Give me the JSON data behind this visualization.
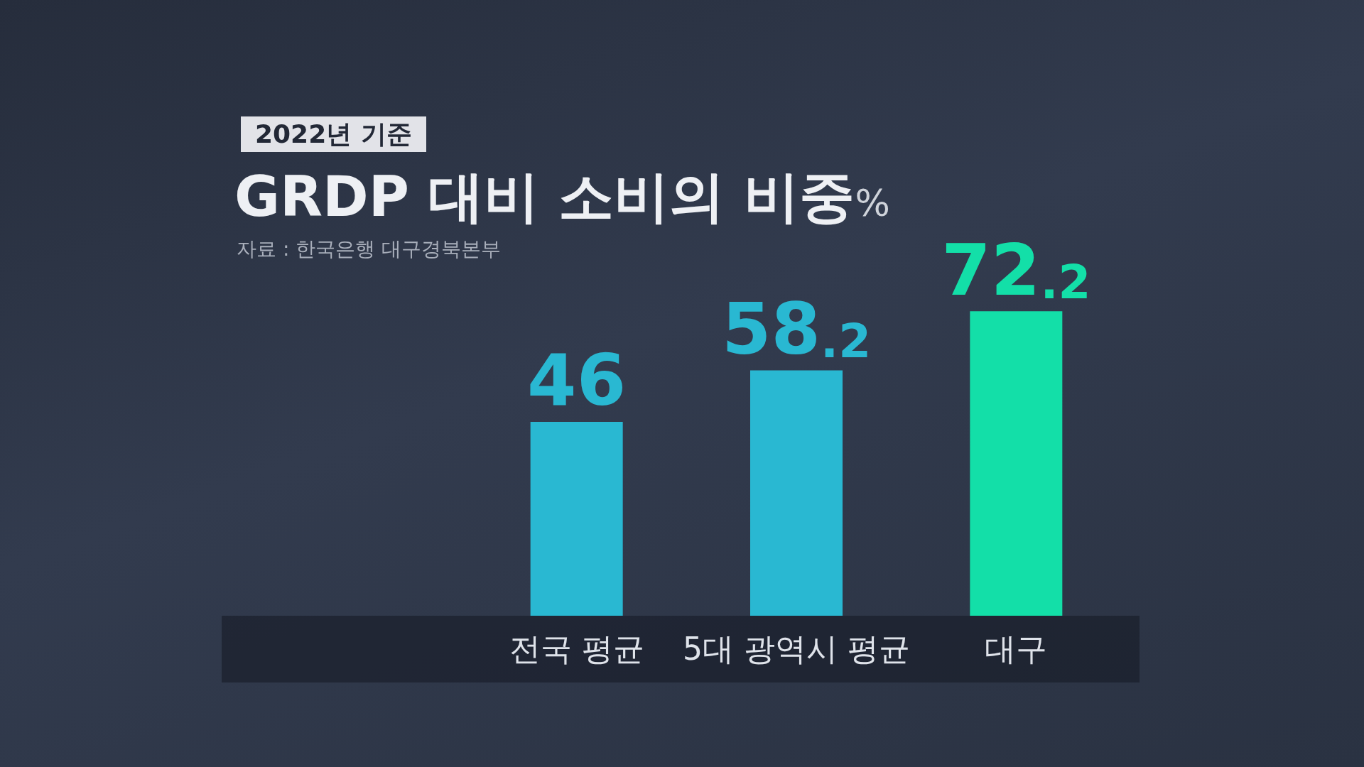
{
  "chart_data": {
    "type": "bar",
    "title": "GRDP 대비 소비의 비중%",
    "subtitle": "2022년 기준",
    "annotations": [
      "자료 : 한국은행 대구경북본부"
    ],
    "categories": [
      "전국 평균",
      "5대 광역시 평균",
      "대구"
    ],
    "values": [
      46,
      58.2,
      72.2
    ],
    "colors": [
      "#29b8d2",
      "#29b8d2",
      "#13dfa8"
    ],
    "data_labels": true
  }
}
